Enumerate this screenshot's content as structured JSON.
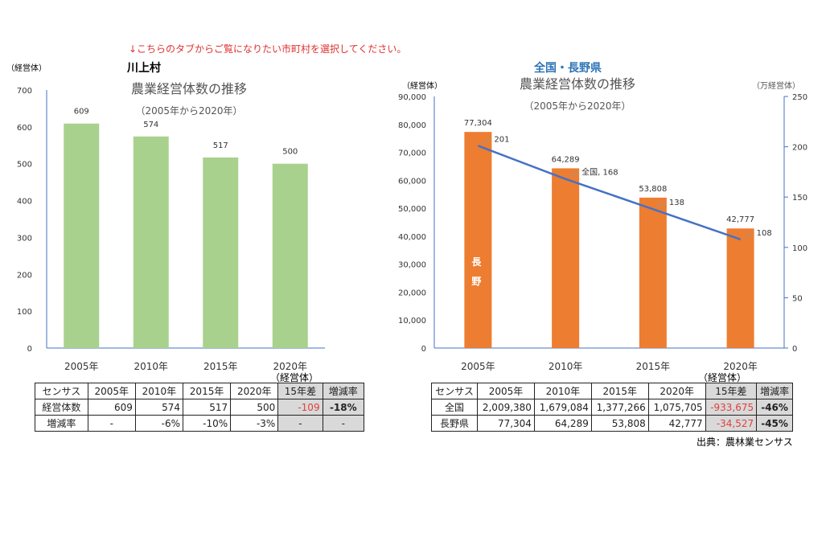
{
  "note": "↓こちらのタブからご覧になりたい市町村を選択してください。",
  "source": "出典：農林業センサス",
  "left": {
    "heading": "川上村",
    "unit_label": "（経営体）",
    "table_unit": "（経営体）",
    "table": {
      "headers": [
        "センサス",
        "2005年",
        "2010年",
        "2015年",
        "2020年",
        "15年差",
        "増減率"
      ],
      "rows": [
        [
          "経営体数",
          "609",
          "574",
          "517",
          "500",
          "-109",
          "-18%"
        ],
        [
          "増減率",
          "-",
          "-6%",
          "-10%",
          "-3%",
          "-",
          "-"
        ]
      ]
    }
  },
  "right": {
    "heading": "全国・長野県",
    "unit_left": "（経営体）",
    "unit_right": "（万経営体）",
    "bar_series_label": "長野",
    "table_unit": "（経営体）",
    "table": {
      "headers": [
        "センサス",
        "2005年",
        "2010年",
        "2015年",
        "2020年",
        "15年差",
        "増減率"
      ],
      "rows": [
        [
          "全国",
          "2,009,380",
          "1,679,084",
          "1,377,266",
          "1,075,705",
          "-933,675",
          "-46%"
        ],
        [
          "長野県",
          "77,304",
          "64,289",
          "53,808",
          "42,777",
          "-34,527",
          "-45%"
        ]
      ]
    }
  },
  "chart_data": [
    {
      "type": "bar",
      "title": "農業経営体数の推移",
      "subtitle": "（2005年から2020年）",
      "categories": [
        "2005年",
        "2010年",
        "2015年",
        "2020年"
      ],
      "values": [
        609,
        574,
        517,
        500
      ],
      "ylim": [
        0,
        700
      ],
      "yticks": [
        0,
        100,
        200,
        300,
        400,
        500,
        600,
        700
      ],
      "color": "#a9d18e",
      "grid": false
    },
    {
      "type": "bar+line",
      "title": "農業経営体数の推移",
      "subtitle": "（2005年から2020年）",
      "categories": [
        "2005年",
        "2010年",
        "2015年",
        "2020年"
      ],
      "series": [
        {
          "name": "長野",
          "type": "bar",
          "axis": "left",
          "values": [
            77304,
            64289,
            53808,
            42777
          ],
          "labels": [
            "77,304",
            "64,289",
            "53,808",
            "42,777"
          ],
          "color": "#ed7d31"
        },
        {
          "name": "全国",
          "type": "line",
          "axis": "right",
          "values": [
            201,
            168,
            138,
            108
          ],
          "labels": [
            "201",
            "全国, 168",
            "138",
            "108"
          ],
          "color": "#4472c4"
        }
      ],
      "ylim": [
        0,
        90000
      ],
      "yticks": [
        "0",
        "10,000",
        "20,000",
        "30,000",
        "40,000",
        "50,000",
        "60,000",
        "70,000",
        "80,000",
        "90,000"
      ],
      "y2lim": [
        0,
        250
      ],
      "y2ticks": [
        0,
        50,
        100,
        150,
        200,
        250
      ],
      "grid": false
    }
  ]
}
